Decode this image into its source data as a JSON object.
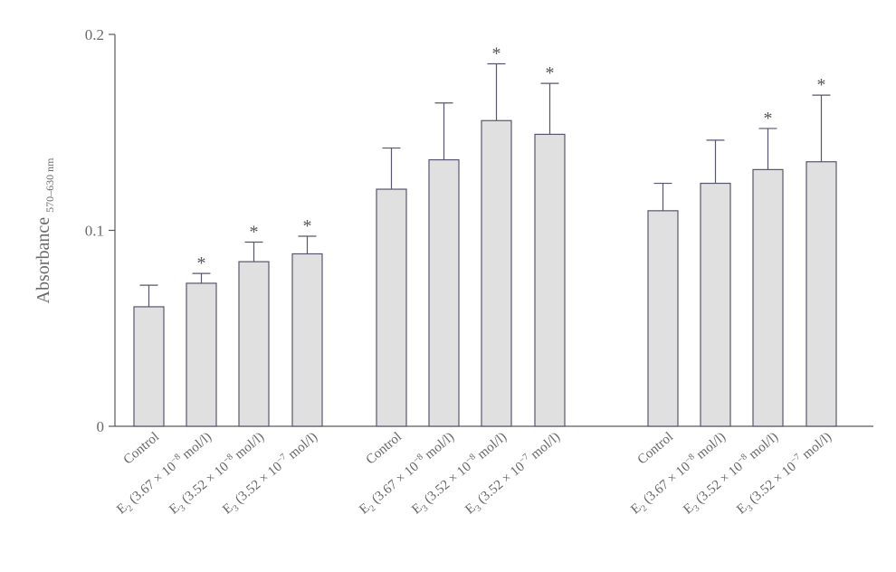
{
  "chart_data": {
    "type": "bar",
    "ylabel": "Absorbance",
    "ylabel_subscript": "570–630 nm",
    "ylim": [
      0,
      0.2
    ],
    "yticks": [
      {
        "value": 0,
        "label": "0"
      },
      {
        "value": 0.1,
        "label": "0.1"
      },
      {
        "value": 0.2,
        "label": "0.2"
      }
    ],
    "grid": false,
    "groups": [
      {
        "bars": [
          {
            "category": "Control",
            "value": 0.061,
            "error": 0.011,
            "significant": false
          },
          {
            "category": "E2 (3.67 × 10−8 mol/l)",
            "value": 0.073,
            "error": 0.005,
            "significant": true
          },
          {
            "category": "E3 (3.52 × 10−8 mol/l)",
            "value": 0.084,
            "error": 0.01,
            "significant": true
          },
          {
            "category": "E3 (3.52 × 10−7 mol/l)",
            "value": 0.088,
            "error": 0.009,
            "significant": true
          }
        ]
      },
      {
        "bars": [
          {
            "category": "Control",
            "value": 0.121,
            "error": 0.021,
            "significant": false
          },
          {
            "category": "E2 (3.67 × 10−8 mol/l)",
            "value": 0.136,
            "error": 0.029,
            "significant": false
          },
          {
            "category": "E3 (3.52 × 10−8 mol/l)",
            "value": 0.156,
            "error": 0.029,
            "significant": true
          },
          {
            "category": "E3 (3.52 × 10−7 mol/l)",
            "value": 0.149,
            "error": 0.026,
            "significant": true
          }
        ]
      },
      {
        "bars": [
          {
            "category": "Control",
            "value": 0.11,
            "error": 0.014,
            "significant": false
          },
          {
            "category": "E2 (3.67 × 10−8 mol/l)",
            "value": 0.124,
            "error": 0.022,
            "significant": false
          },
          {
            "category": "E3 (3.52 × 10−8 mol/l)",
            "value": 0.131,
            "error": 0.021,
            "significant": true
          },
          {
            "category": "E3 (3.52 × 10−7 mol/l)",
            "value": 0.135,
            "error": 0.034,
            "significant": true
          }
        ]
      }
    ],
    "significance_marker": "*",
    "category_labels": [
      {
        "text": "Control"
      },
      {
        "main": "E",
        "sub": "2",
        "mid": " (3.67 × 10",
        "sup": "−8",
        "tail": " mol/l)"
      },
      {
        "main": "E",
        "sub": "3",
        "mid": " (3.52 × 10",
        "sup": "−8",
        "tail": " mol/l)"
      },
      {
        "main": "E",
        "sub": "3",
        "mid": " (3.52 × 10",
        "sup": "−7",
        "tail": " mol/l)"
      }
    ]
  }
}
